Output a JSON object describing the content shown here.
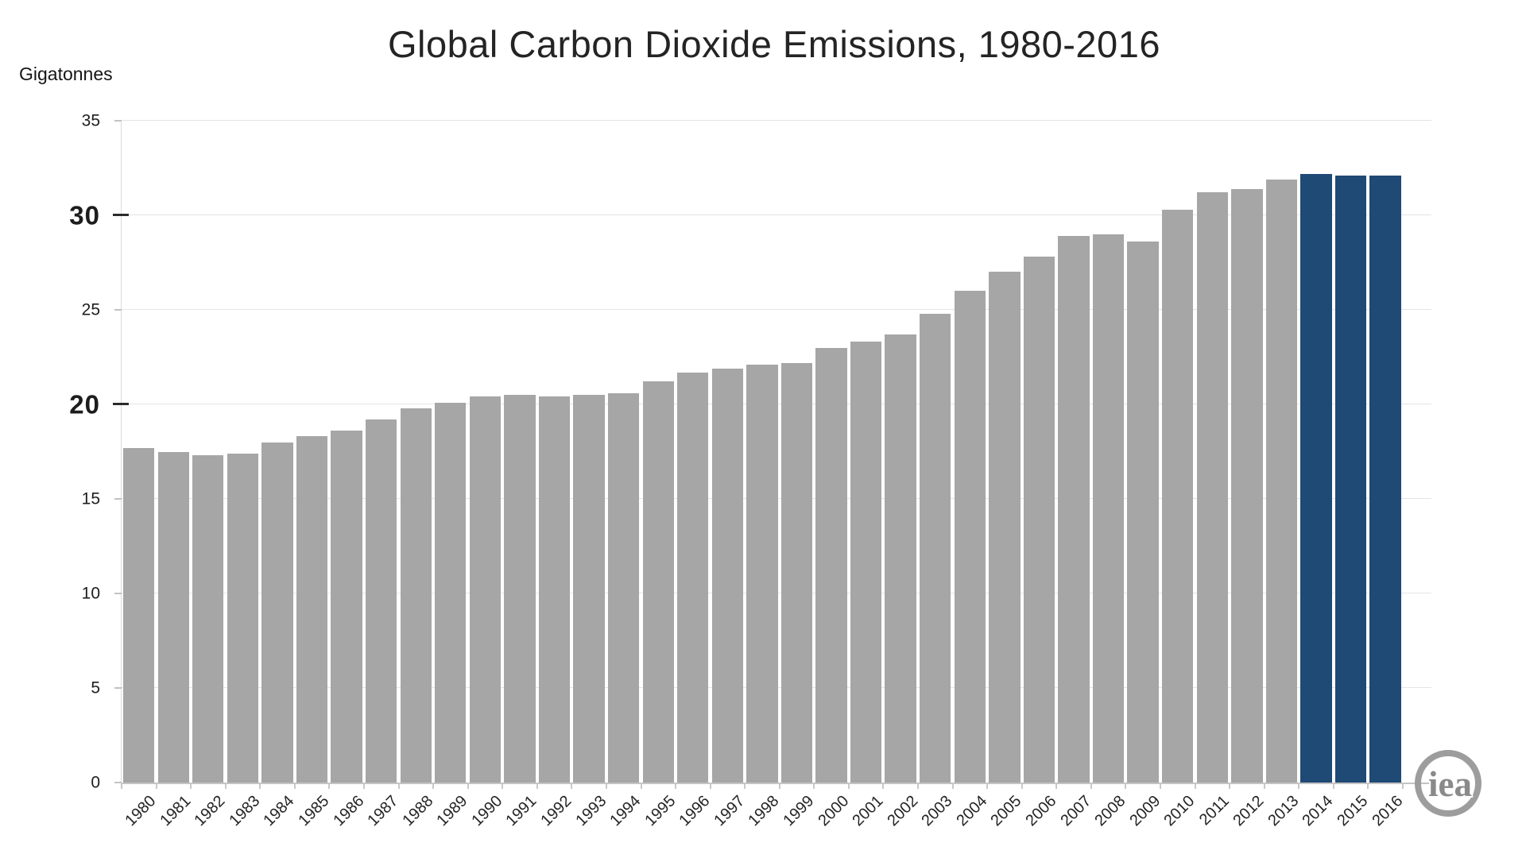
{
  "header": {
    "title": "Global Carbon Dioxide Emissions, 1980-2016",
    "unit_label": "Gigatonnes"
  },
  "logo": {
    "text": "iea"
  },
  "chart_data": {
    "type": "bar",
    "title": "Global Carbon Dioxide Emissions, 1980-2016",
    "xlabel": "",
    "ylabel": "Gigatonnes",
    "ylim": [
      0,
      35
    ],
    "grid": true,
    "legend": "none",
    "y_ticks": [
      {
        "value": 0,
        "bold": false
      },
      {
        "value": 5,
        "bold": false
      },
      {
        "value": 10,
        "bold": false
      },
      {
        "value": 15,
        "bold": false
      },
      {
        "value": 20,
        "bold": true
      },
      {
        "value": 25,
        "bold": false
      },
      {
        "value": 30,
        "bold": true
      },
      {
        "value": 35,
        "bold": false
      }
    ],
    "categories": [
      "1980",
      "1981",
      "1982",
      "1983",
      "1984",
      "1985",
      "1986",
      "1987",
      "1988",
      "1989",
      "1990",
      "1991",
      "1992",
      "1993",
      "1994",
      "1995",
      "1996",
      "1997",
      "1998",
      "1999",
      "2000",
      "2001",
      "2002",
      "2003",
      "2004",
      "2005",
      "2006",
      "2007",
      "2008",
      "2009",
      "2010",
      "2011",
      "2012",
      "2013",
      "2014",
      "2015",
      "2016"
    ],
    "values": [
      17.7,
      17.5,
      17.3,
      17.4,
      18.0,
      18.3,
      18.6,
      19.2,
      19.8,
      20.1,
      20.4,
      20.5,
      20.4,
      20.5,
      20.6,
      21.2,
      21.7,
      21.9,
      22.1,
      22.2,
      23.0,
      23.3,
      23.7,
      24.8,
      26.0,
      27.0,
      27.8,
      28.9,
      29.0,
      28.6,
      30.3,
      31.2,
      31.4,
      31.9,
      32.2,
      32.1,
      32.1
    ],
    "highlight_years": [
      "2014",
      "2015",
      "2016"
    ],
    "colors": {
      "bar": "#a6a6a6",
      "highlight": "#1f4a75",
      "gridline": "#e4e4e4",
      "axis": "#c3c3c3",
      "text": "#242424",
      "logo": "#9d9d9d"
    }
  }
}
